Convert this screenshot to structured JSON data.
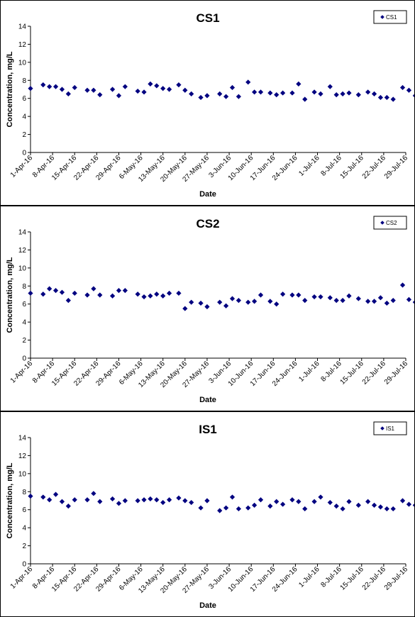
{
  "chart_data": [
    {
      "type": "scatter",
      "title": "CS1",
      "xlabel": "Date",
      "ylabel": "Concentration, mg/L",
      "ylim": [
        0,
        14
      ],
      "yticks": [
        0,
        2,
        4,
        6,
        8,
        10,
        12,
        14
      ],
      "xlim": [
        "2016-04-01",
        "2016-07-29"
      ],
      "xtick_labels": [
        "1-Apr-16",
        "8-Apr-16",
        "15-Apr-16",
        "22-Apr-16",
        "29-Apr-16",
        "6-May-16",
        "13-May-16",
        "20-May-16",
        "27-May-16",
        "3-Jun-16",
        "10-Jun-16",
        "17-Jun-16",
        "24-Jun-16",
        "1-Jul-16",
        "8-Jul-16",
        "15-Jul-16",
        "22-Jul-16",
        "29-Jul-16"
      ],
      "grid": false,
      "legend": "top-right",
      "color": "#000080",
      "series": [
        {
          "name": "CS1",
          "points": [
            {
              "x": "2016-04-01",
              "y": 7.1
            },
            {
              "x": "2016-04-05",
              "y": 7.5
            },
            {
              "x": "2016-04-07",
              "y": 7.3
            },
            {
              "x": "2016-04-09",
              "y": 7.3
            },
            {
              "x": "2016-04-11",
              "y": 7.0
            },
            {
              "x": "2016-04-13",
              "y": 6.5
            },
            {
              "x": "2016-04-15",
              "y": 7.2
            },
            {
              "x": "2016-04-19",
              "y": 6.9
            },
            {
              "x": "2016-04-21",
              "y": 6.9
            },
            {
              "x": "2016-04-23",
              "y": 6.4
            },
            {
              "x": "2016-04-27",
              "y": 7.0
            },
            {
              "x": "2016-04-29",
              "y": 6.3
            },
            {
              "x": "2016-05-01",
              "y": 7.3
            },
            {
              "x": "2016-05-05",
              "y": 6.8
            },
            {
              "x": "2016-05-07",
              "y": 6.7
            },
            {
              "x": "2016-05-09",
              "y": 7.6
            },
            {
              "x": "2016-05-11",
              "y": 7.4
            },
            {
              "x": "2016-05-13",
              "y": 7.1
            },
            {
              "x": "2016-05-15",
              "y": 7.0
            },
            {
              "x": "2016-05-18",
              "y": 7.5
            },
            {
              "x": "2016-05-20",
              "y": 6.9
            },
            {
              "x": "2016-05-22",
              "y": 6.5
            },
            {
              "x": "2016-05-25",
              "y": 6.1
            },
            {
              "x": "2016-05-27",
              "y": 6.3
            },
            {
              "x": "2016-05-31",
              "y": 6.5
            },
            {
              "x": "2016-06-02",
              "y": 6.2
            },
            {
              "x": "2016-06-04",
              "y": 7.2
            },
            {
              "x": "2016-06-06",
              "y": 6.2
            },
            {
              "x": "2016-06-09",
              "y": 7.8
            },
            {
              "x": "2016-06-11",
              "y": 6.7
            },
            {
              "x": "2016-06-13",
              "y": 6.7
            },
            {
              "x": "2016-06-16",
              "y": 6.6
            },
            {
              "x": "2016-06-18",
              "y": 6.4
            },
            {
              "x": "2016-06-20",
              "y": 6.6
            },
            {
              "x": "2016-06-23",
              "y": 6.6
            },
            {
              "x": "2016-06-25",
              "y": 7.6
            },
            {
              "x": "2016-06-27",
              "y": 5.9
            },
            {
              "x": "2016-06-30",
              "y": 6.7
            },
            {
              "x": "2016-07-02",
              "y": 6.5
            },
            {
              "x": "2016-07-05",
              "y": 7.3
            },
            {
              "x": "2016-07-07",
              "y": 6.4
            },
            {
              "x": "2016-07-09",
              "y": 6.5
            },
            {
              "x": "2016-07-11",
              "y": 6.6
            },
            {
              "x": "2016-07-14",
              "y": 6.4
            },
            {
              "x": "2016-07-17",
              "y": 6.7
            },
            {
              "x": "2016-07-19",
              "y": 6.5
            },
            {
              "x": "2016-07-21",
              "y": 6.1
            },
            {
              "x": "2016-07-23",
              "y": 6.1
            },
            {
              "x": "2016-07-25",
              "y": 5.9
            },
            {
              "x": "2016-07-28",
              "y": 7.2
            },
            {
              "x": "2016-07-30",
              "y": 6.9
            },
            {
              "x": "2016-08-01",
              "y": 6.3
            }
          ]
        }
      ]
    },
    {
      "type": "scatter",
      "title": "CS2",
      "xlabel": "Date",
      "ylabel": "Concentration, mg/L",
      "ylim": [
        0,
        14
      ],
      "yticks": [
        0,
        2,
        4,
        6,
        8,
        10,
        12,
        14
      ],
      "xlim": [
        "2016-04-01",
        "2016-07-29"
      ],
      "xtick_labels": [
        "1-Apr-16",
        "8-Apr-16",
        "15-Apr-16",
        "22-Apr-16",
        "29-Apr-16",
        "6-May-16",
        "13-May-16",
        "20-May-16",
        "27-May-16",
        "3-Jun-16",
        "10-Jun-16",
        "17-Jun-16",
        "24-Jun-16",
        "1-Jul-16",
        "8-Jul-16",
        "15-Jul-16",
        "22-Jul-16",
        "29-Jul-16"
      ],
      "grid": false,
      "legend": "top-right",
      "color": "#000080",
      "series": [
        {
          "name": "CS2",
          "points": [
            {
              "x": "2016-04-01",
              "y": 7.2
            },
            {
              "x": "2016-04-05",
              "y": 7.1
            },
            {
              "x": "2016-04-07",
              "y": 7.7
            },
            {
              "x": "2016-04-09",
              "y": 7.5
            },
            {
              "x": "2016-04-11",
              "y": 7.3
            },
            {
              "x": "2016-04-13",
              "y": 6.4
            },
            {
              "x": "2016-04-15",
              "y": 7.2
            },
            {
              "x": "2016-04-19",
              "y": 7.0
            },
            {
              "x": "2016-04-21",
              "y": 7.7
            },
            {
              "x": "2016-04-23",
              "y": 7.0
            },
            {
              "x": "2016-04-27",
              "y": 6.9
            },
            {
              "x": "2016-04-29",
              "y": 7.5
            },
            {
              "x": "2016-05-01",
              "y": 7.5
            },
            {
              "x": "2016-05-05",
              "y": 7.1
            },
            {
              "x": "2016-05-07",
              "y": 6.8
            },
            {
              "x": "2016-05-09",
              "y": 6.9
            },
            {
              "x": "2016-05-11",
              "y": 7.1
            },
            {
              "x": "2016-05-13",
              "y": 6.9
            },
            {
              "x": "2016-05-15",
              "y": 7.2
            },
            {
              "x": "2016-05-18",
              "y": 7.2
            },
            {
              "x": "2016-05-20",
              "y": 5.5
            },
            {
              "x": "2016-05-22",
              "y": 6.2
            },
            {
              "x": "2016-05-25",
              "y": 6.1
            },
            {
              "x": "2016-05-27",
              "y": 5.7
            },
            {
              "x": "2016-05-31",
              "y": 6.2
            },
            {
              "x": "2016-06-02",
              "y": 5.8
            },
            {
              "x": "2016-06-04",
              "y": 6.6
            },
            {
              "x": "2016-06-06",
              "y": 6.4
            },
            {
              "x": "2016-06-09",
              "y": 6.2
            },
            {
              "x": "2016-06-11",
              "y": 6.3
            },
            {
              "x": "2016-06-13",
              "y": 7.0
            },
            {
              "x": "2016-06-16",
              "y": 6.3
            },
            {
              "x": "2016-06-18",
              "y": 6.0
            },
            {
              "x": "2016-06-20",
              "y": 7.1
            },
            {
              "x": "2016-06-23",
              "y": 7.0
            },
            {
              "x": "2016-06-25",
              "y": 7.0
            },
            {
              "x": "2016-06-27",
              "y": 6.4
            },
            {
              "x": "2016-06-30",
              "y": 6.8
            },
            {
              "x": "2016-07-02",
              "y": 6.8
            },
            {
              "x": "2016-07-05",
              "y": 6.7
            },
            {
              "x": "2016-07-07",
              "y": 6.4
            },
            {
              "x": "2016-07-09",
              "y": 6.4
            },
            {
              "x": "2016-07-11",
              "y": 6.9
            },
            {
              "x": "2016-07-14",
              "y": 6.6
            },
            {
              "x": "2016-07-17",
              "y": 6.3
            },
            {
              "x": "2016-07-19",
              "y": 6.3
            },
            {
              "x": "2016-07-21",
              "y": 6.7
            },
            {
              "x": "2016-07-23",
              "y": 6.1
            },
            {
              "x": "2016-07-25",
              "y": 6.4
            },
            {
              "x": "2016-07-28",
              "y": 8.1
            },
            {
              "x": "2016-07-30",
              "y": 6.5
            },
            {
              "x": "2016-08-01",
              "y": 6.2
            }
          ]
        }
      ]
    },
    {
      "type": "scatter",
      "title": "IS1",
      "xlabel": "Date",
      "ylabel": "Concentration, mg/L",
      "ylim": [
        0,
        14
      ],
      "yticks": [
        0,
        2,
        4,
        6,
        8,
        10,
        12,
        14
      ],
      "xlim": [
        "2016-04-01",
        "2016-07-29"
      ],
      "xtick_labels": [
        "1-Apr-16",
        "8-Apr-16",
        "15-Apr-16",
        "22-Apr-16",
        "29-Apr-16",
        "6-May-16",
        "13-May-16",
        "20-May-16",
        "27-May-16",
        "3-Jun-16",
        "10-Jun-16",
        "17-Jun-16",
        "24-Jun-16",
        "1-Jul-16",
        "8-Jul-16",
        "15-Jul-16",
        "22-Jul-16",
        "29-Jul-16"
      ],
      "grid": false,
      "legend": "top-right",
      "color": "#000080",
      "series": [
        {
          "name": "IS1",
          "points": [
            {
              "x": "2016-04-01",
              "y": 7.5
            },
            {
              "x": "2016-04-05",
              "y": 7.4
            },
            {
              "x": "2016-04-07",
              "y": 7.1
            },
            {
              "x": "2016-04-09",
              "y": 7.7
            },
            {
              "x": "2016-04-11",
              "y": 6.9
            },
            {
              "x": "2016-04-13",
              "y": 6.4
            },
            {
              "x": "2016-04-15",
              "y": 7.1
            },
            {
              "x": "2016-04-19",
              "y": 7.1
            },
            {
              "x": "2016-04-21",
              "y": 7.8
            },
            {
              "x": "2016-04-23",
              "y": 6.9
            },
            {
              "x": "2016-04-27",
              "y": 7.2
            },
            {
              "x": "2016-04-29",
              "y": 6.7
            },
            {
              "x": "2016-05-01",
              "y": 7.0
            },
            {
              "x": "2016-05-05",
              "y": 7.0
            },
            {
              "x": "2016-05-07",
              "y": 7.1
            },
            {
              "x": "2016-05-09",
              "y": 7.2
            },
            {
              "x": "2016-05-11",
              "y": 7.1
            },
            {
              "x": "2016-05-13",
              "y": 6.8
            },
            {
              "x": "2016-05-15",
              "y": 7.1
            },
            {
              "x": "2016-05-18",
              "y": 7.3
            },
            {
              "x": "2016-05-20",
              "y": 7.0
            },
            {
              "x": "2016-05-22",
              "y": 6.8
            },
            {
              "x": "2016-05-25",
              "y": 6.2
            },
            {
              "x": "2016-05-27",
              "y": 7.0
            },
            {
              "x": "2016-05-31",
              "y": 5.9
            },
            {
              "x": "2016-06-02",
              "y": 6.2
            },
            {
              "x": "2016-06-04",
              "y": 7.4
            },
            {
              "x": "2016-06-06",
              "y": 6.1
            },
            {
              "x": "2016-06-09",
              "y": 6.2
            },
            {
              "x": "2016-06-11",
              "y": 6.5
            },
            {
              "x": "2016-06-13",
              "y": 7.1
            },
            {
              "x": "2016-06-16",
              "y": 6.4
            },
            {
              "x": "2016-06-18",
              "y": 6.9
            },
            {
              "x": "2016-06-20",
              "y": 6.6
            },
            {
              "x": "2016-06-23",
              "y": 7.1
            },
            {
              "x": "2016-06-25",
              "y": 6.9
            },
            {
              "x": "2016-06-27",
              "y": 6.1
            },
            {
              "x": "2016-06-30",
              "y": 6.9
            },
            {
              "x": "2016-07-02",
              "y": 7.4
            },
            {
              "x": "2016-07-05",
              "y": 6.8
            },
            {
              "x": "2016-07-07",
              "y": 6.4
            },
            {
              "x": "2016-07-09",
              "y": 6.1
            },
            {
              "x": "2016-07-11",
              "y": 6.9
            },
            {
              "x": "2016-07-14",
              "y": 6.5
            },
            {
              "x": "2016-07-17",
              "y": 6.9
            },
            {
              "x": "2016-07-19",
              "y": 6.5
            },
            {
              "x": "2016-07-21",
              "y": 6.3
            },
            {
              "x": "2016-07-23",
              "y": 6.1
            },
            {
              "x": "2016-07-25",
              "y": 6.1
            },
            {
              "x": "2016-07-28",
              "y": 7.0
            },
            {
              "x": "2016-07-30",
              "y": 6.6
            },
            {
              "x": "2016-08-01",
              "y": 6.5
            }
          ]
        }
      ]
    }
  ]
}
